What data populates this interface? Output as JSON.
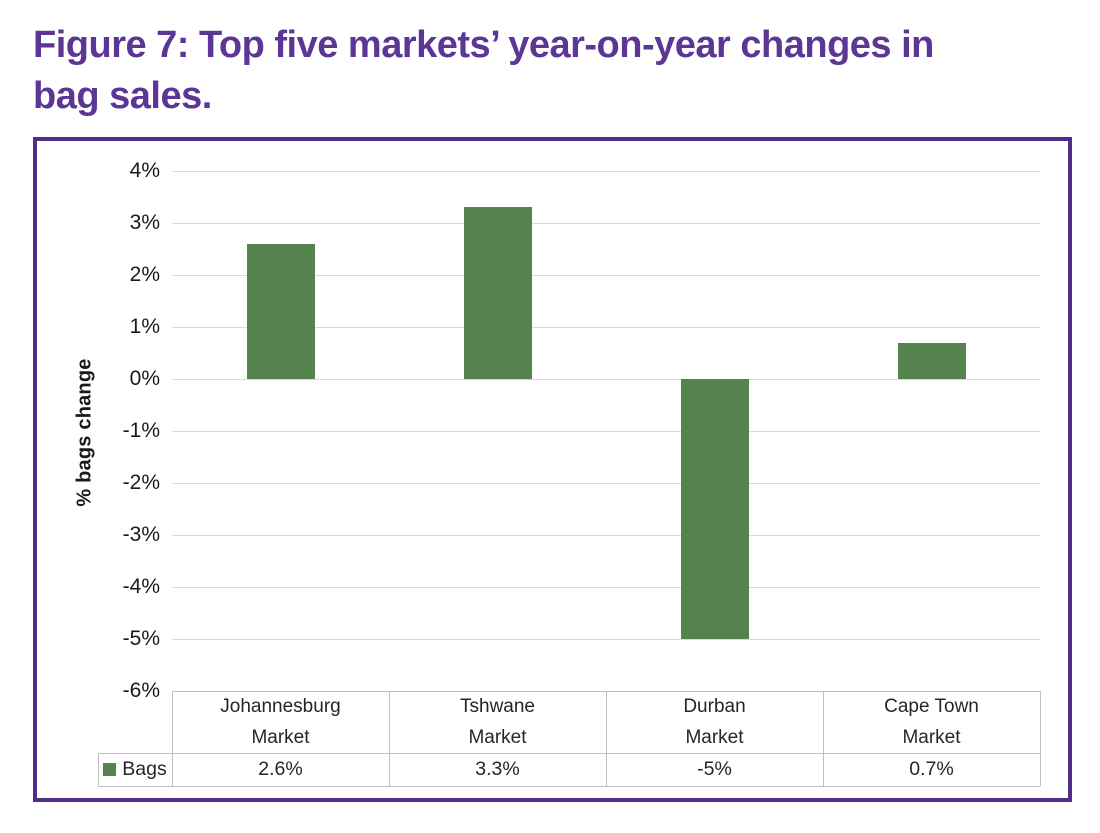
{
  "page": {
    "title_line1": "Figure 7: Top five markets’ year-on-year changes in",
    "title_line2": "bag sales."
  },
  "colors": {
    "title_purple": "#5b3694",
    "frame_purple": "#522d86",
    "bar_green": "#54834d",
    "gridline_gray": "#d9d9d9",
    "table_border_gray": "#bfbfbf",
    "text_dark": "#262626"
  },
  "chart_data": {
    "type": "bar",
    "title": "Figure 7: Top five markets’ year-on-year changes in bag sales.",
    "xlabel": "",
    "ylabel": "% bags change",
    "categories": [
      "Johannesburg Market",
      "Tshwane Market",
      "Durban Market",
      "Cape Town Market"
    ],
    "series": [
      {
        "name": "Bags",
        "values": [
          2.6,
          3.3,
          -5,
          0.7
        ]
      }
    ],
    "value_labels": [
      "2.6%",
      "3.3%",
      "-5%",
      "0.7%"
    ],
    "ylim": [
      -6,
      4
    ],
    "ytick_step": 1,
    "ytick_labels": [
      "4%",
      "3%",
      "2%",
      "1%",
      "0%",
      "-1%",
      "-2%",
      "-3%",
      "-4%",
      "-5%",
      "-6%"
    ],
    "grid": true,
    "legend_position": "data-table bottom-left"
  }
}
